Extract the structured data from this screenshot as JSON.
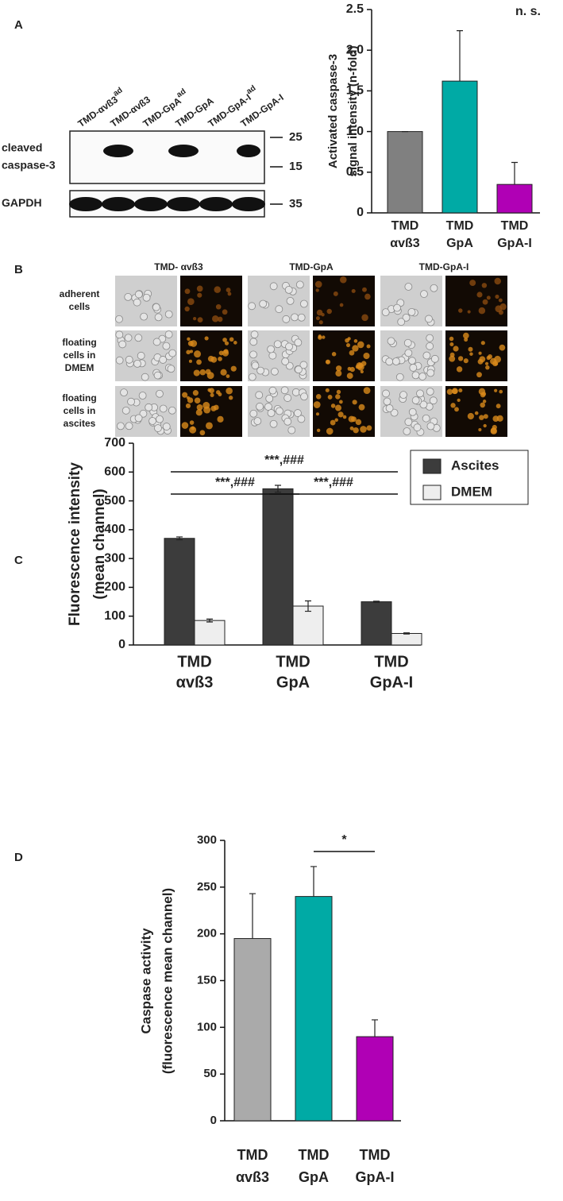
{
  "panels": [
    "A",
    "B",
    "C",
    "D"
  ],
  "blot": {
    "lanes": [
      {
        "text": "TMD-αvß3",
        "sup": "ad"
      },
      {
        "text": "TMD-αvß3"
      },
      {
        "text": "TMD-GpA",
        "sup": "ad"
      },
      {
        "text": "TMD-GpA"
      },
      {
        "text": "TMD-GpA-I",
        "sup": "ad"
      },
      {
        "text": "TMD-GpA-I"
      }
    ],
    "rows": [
      {
        "label": [
          "cleaved",
          "caspase-3"
        ],
        "markers": [
          25,
          15
        ]
      },
      {
        "label": [
          "GAPDH"
        ],
        "markers": [
          35
        ]
      }
    ]
  },
  "microscopy": {
    "columns": [
      "TMD- αvß3",
      "TMD-GpA",
      "TMD-GpA-I"
    ],
    "rows": [
      [
        "adherent",
        "cells"
      ],
      [
        "floating",
        "cells in",
        "DMEM"
      ],
      [
        "floating",
        "cells in",
        "ascites"
      ]
    ]
  },
  "chart_data": [
    {
      "type": "bar",
      "ylabel": [
        "Activated caspase-3",
        "signal intensity (n-fold)"
      ],
      "categories": [
        [
          "TMD",
          "αvß3"
        ],
        [
          "TMD",
          "GpA"
        ],
        [
          "TMD",
          "GpA-I"
        ]
      ],
      "values": [
        1.0,
        1.62,
        0.35
      ],
      "errors": [
        0,
        0.62,
        0.27
      ],
      "colors": [
        "#808080",
        "#00aaa5",
        "#b000b5"
      ],
      "ylim": [
        0,
        2.5
      ],
      "yticks": [
        0,
        0.5,
        {
          "value": 1,
          "label": "1.0"
        },
        1.5,
        {
          "value": 2,
          "label": "2.0"
        },
        2.5
      ],
      "annotation": "n. s."
    },
    {
      "type": "grouped_bar",
      "ylabel": [
        "Fluorescence intensity",
        "(mean channel)"
      ],
      "categories": [
        [
          "TMD",
          "αvß3"
        ],
        [
          "TMD",
          "GpA"
        ],
        [
          "TMD",
          "GpA-I"
        ]
      ],
      "category_colors": [
        "#5a5a5a",
        "#00aaa5",
        "#b000b5"
      ],
      "series": [
        {
          "name": "Ascites",
          "color": "#3c3c3c",
          "values": [
            370,
            542,
            150
          ],
          "errors": [
            5,
            12,
            2
          ]
        },
        {
          "name": "DMEM",
          "color": "#eeeeee",
          "values": [
            85,
            135,
            40
          ],
          "errors": [
            5,
            18,
            2
          ]
        }
      ],
      "ylim": [
        0,
        700
      ],
      "yticks": [
        0,
        100,
        200,
        300,
        400,
        500,
        600,
        700
      ],
      "legend": "upper right",
      "significance": [
        {
          "label": "***,###",
          "pair": [
            0,
            2
          ]
        },
        {
          "label": "***,###",
          "pair": [
            0,
            1
          ]
        },
        {
          "label": "***,###",
          "pair": [
            1,
            2
          ]
        }
      ]
    },
    {
      "type": "bar",
      "ylabel": [
        "Caspase activity",
        "(fluorescence mean channel)"
      ],
      "categories": [
        [
          "TMD",
          "αvß3"
        ],
        [
          "TMD",
          "GpA"
        ],
        [
          "TMD",
          "GpA-I"
        ]
      ],
      "values": [
        195,
        240,
        90
      ],
      "errors": [
        48,
        32,
        18
      ],
      "colors": [
        "#aaaaaa",
        "#00aaa5",
        "#b000b5"
      ],
      "ylim": [
        0,
        300
      ],
      "yticks": [
        0,
        50,
        100,
        150,
        200,
        250,
        300
      ],
      "significance": [
        {
          "label": "*",
          "pair": [
            1,
            2
          ]
        }
      ]
    }
  ]
}
